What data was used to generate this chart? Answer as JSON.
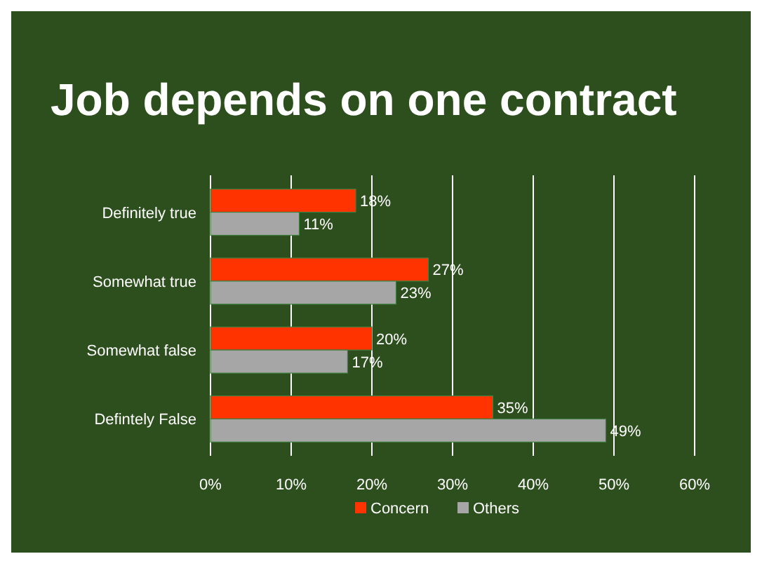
{
  "chart_data": {
    "type": "bar",
    "orientation": "horizontal",
    "title": "Job depends on one contract",
    "categories": [
      "Definitely true",
      "Somewhat true",
      "Somewhat false",
      "Defintely False"
    ],
    "series": [
      {
        "name": "Concern",
        "color": "#ff3300",
        "values": [
          18,
          27,
          20,
          35
        ]
      },
      {
        "name": "Others",
        "color": "#a6a6a6",
        "values": [
          11,
          23,
          17,
          49
        ]
      }
    ],
    "xlim": [
      0,
      60
    ],
    "xticks": [
      {
        "value": 0,
        "label": "0%"
      },
      {
        "value": 10,
        "label": "10%"
      },
      {
        "value": 20,
        "label": "20%"
      },
      {
        "value": 30,
        "label": "30%"
      },
      {
        "value": 40,
        "label": "40%"
      },
      {
        "value": 50,
        "label": "50%"
      },
      {
        "value": 60,
        "label": "60%"
      }
    ],
    "grid": "x",
    "legend": "bottom",
    "value_labels": [
      [
        "18%",
        "27%",
        "20%",
        "35%"
      ],
      [
        "11%",
        "23%",
        "17%",
        "49%"
      ]
    ]
  }
}
